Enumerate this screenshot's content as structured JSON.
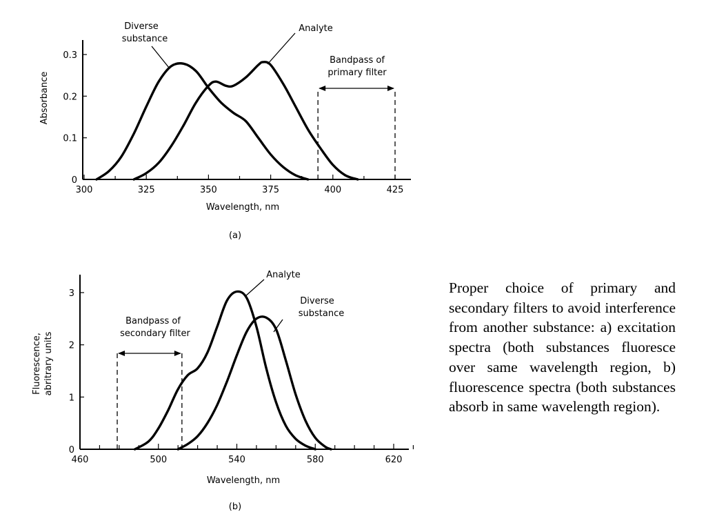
{
  "chart_data": [
    {
      "type": "line",
      "panel_label": "(a)",
      "xlabel": "Wavelength, nm",
      "ylabel": "Absorbance",
      "xlim": [
        300,
        430
      ],
      "ylim": [
        0,
        0.33
      ],
      "xticks": [
        300,
        325,
        350,
        375,
        400,
        425
      ],
      "yticks": [
        0,
        0.1,
        0.2,
        0.3
      ],
      "ytick_labels": [
        "0",
        "0.1",
        "0.2",
        "0.3"
      ],
      "grid": false,
      "series": [
        {
          "name": "Diverse substance",
          "x": [
            305,
            310,
            315,
            320,
            325,
            330,
            335,
            340,
            345,
            350,
            355,
            360,
            365,
            370,
            375,
            380,
            385,
            390
          ],
          "y": [
            0,
            0.02,
            0.055,
            0.11,
            0.175,
            0.235,
            0.272,
            0.278,
            0.26,
            0.22,
            0.185,
            0.16,
            0.14,
            0.1,
            0.06,
            0.03,
            0.01,
            0
          ]
        },
        {
          "name": "Analyte",
          "x": [
            320,
            325,
            330,
            335,
            340,
            345,
            350,
            353,
            357,
            360,
            365,
            370,
            372,
            375,
            380,
            385,
            390,
            395,
            400,
            405,
            410
          ],
          "y": [
            0,
            0.015,
            0.04,
            0.08,
            0.13,
            0.185,
            0.225,
            0.235,
            0.225,
            0.225,
            0.245,
            0.275,
            0.282,
            0.275,
            0.23,
            0.175,
            0.12,
            0.075,
            0.035,
            0.01,
            0
          ]
        }
      ],
      "annotations": [
        {
          "text_lines": [
            "Diverse",
            "substance"
          ],
          "target_series": "Diverse substance"
        },
        {
          "text_lines": [
            "Analyte"
          ],
          "target_series": "Analyte"
        },
        {
          "text_lines": [
            "Bandpass of",
            "primary filter"
          ],
          "band": [
            394,
            425
          ]
        }
      ]
    },
    {
      "type": "line",
      "panel_label": "(b)",
      "xlabel": "Wavelength, nm",
      "ylabel_lines": [
        "Fluorescence,",
        "abritrary units"
      ],
      "xlim": [
        460,
        630
      ],
      "ylim": [
        0,
        3.35
      ],
      "xticks": [
        460,
        500,
        540,
        580,
        620
      ],
      "yticks": [
        0,
        1,
        2,
        3
      ],
      "ytick_labels": [
        "0",
        "1",
        "2",
        "3"
      ],
      "grid": false,
      "series": [
        {
          "name": "Analyte",
          "x": [
            488,
            495,
            500,
            505,
            510,
            515,
            520,
            525,
            530,
            535,
            540,
            545,
            550,
            555,
            560,
            565,
            570,
            575,
            580
          ],
          "y": [
            0,
            0.15,
            0.4,
            0.75,
            1.15,
            1.42,
            1.55,
            1.85,
            2.35,
            2.85,
            3.02,
            2.9,
            2.35,
            1.55,
            0.9,
            0.45,
            0.2,
            0.07,
            0
          ]
        },
        {
          "name": "Diverse substance",
          "x": [
            510,
            515,
            520,
            525,
            530,
            535,
            540,
            545,
            550,
            555,
            560,
            565,
            570,
            575,
            580,
            585,
            588
          ],
          "y": [
            0,
            0.1,
            0.25,
            0.5,
            0.85,
            1.3,
            1.8,
            2.25,
            2.5,
            2.52,
            2.3,
            1.7,
            1.05,
            0.55,
            0.22,
            0.05,
            0
          ]
        }
      ],
      "annotations": [
        {
          "text_lines": [
            "Analyte"
          ],
          "target_series": "Analyte"
        },
        {
          "text_lines": [
            "Diverse",
            "substance"
          ],
          "target_series": "Diverse substance"
        },
        {
          "text_lines": [
            "Bandpass of",
            "secondary filter"
          ],
          "band": [
            479,
            512
          ]
        }
      ]
    }
  ],
  "caption": "Proper choice of primary and secondary filters to avoid interference from another substance: a) excitation spectra (both substances fluoresce over same wavelength region, b) fluorescence spectra (both substances absorb in same wavelength region).",
  "colors": {
    "line": "#000000",
    "background": "#ffffff"
  }
}
